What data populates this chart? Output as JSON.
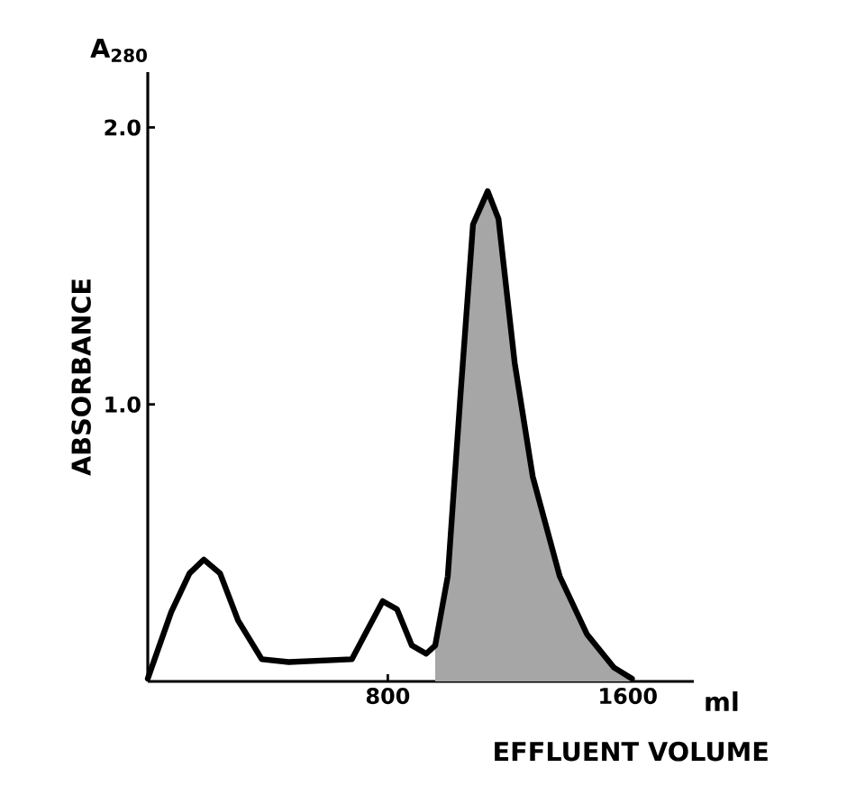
{
  "chart_data": {
    "type": "line",
    "xlabel": "EFFLUENT VOLUME",
    "ylabel": "ABSORBANCE",
    "annotations": [
      "A$_{280}$",
      "ml"
    ],
    "series": [
      {
        "color": "#000000",
        "x": [
          0,
          78,
          139,
          187,
          241,
          301,
          380,
          470,
          680,
          729,
          783,
          831,
          880,
          928,
          958,
          1000,
          1042,
          1084,
          1133,
          1169,
          1223,
          1283,
          1373,
          1464,
          1554,
          1614
        ],
        "values": [
          0.01,
          0.25,
          0.39,
          0.44,
          0.39,
          0.22,
          0.08,
          0.07,
          0.08,
          0.18,
          0.29,
          0.26,
          0.13,
          0.1,
          0.13,
          0.38,
          1.03,
          1.65,
          1.77,
          1.67,
          1.15,
          0.74,
          0.38,
          0.17,
          0.05,
          0.01
        ]
      },
      {
        "type": "area",
        "color": "#a6a6a6",
        "x": [
          958,
          1000,
          1042,
          1084,
          1133,
          1169,
          1223,
          1283,
          1373,
          1464,
          1554,
          1614
        ],
        "values": [
          0.13,
          0.38,
          1.03,
          1.65,
          1.77,
          1.67,
          1.15,
          0.74,
          0.38,
          0.17,
          0.05,
          0.01
        ]
      }
    ],
    "xlim": [
      0,
      1820
    ],
    "ylim": [
      0,
      2.2
    ],
    "xticks": [
      800,
      1600
    ],
    "yticks": [
      {
        "value": 1.0,
        "label": "1.0"
      },
      {
        "value": 2.0,
        "label": "2.0"
      }
    ],
    "grid": false
  }
}
